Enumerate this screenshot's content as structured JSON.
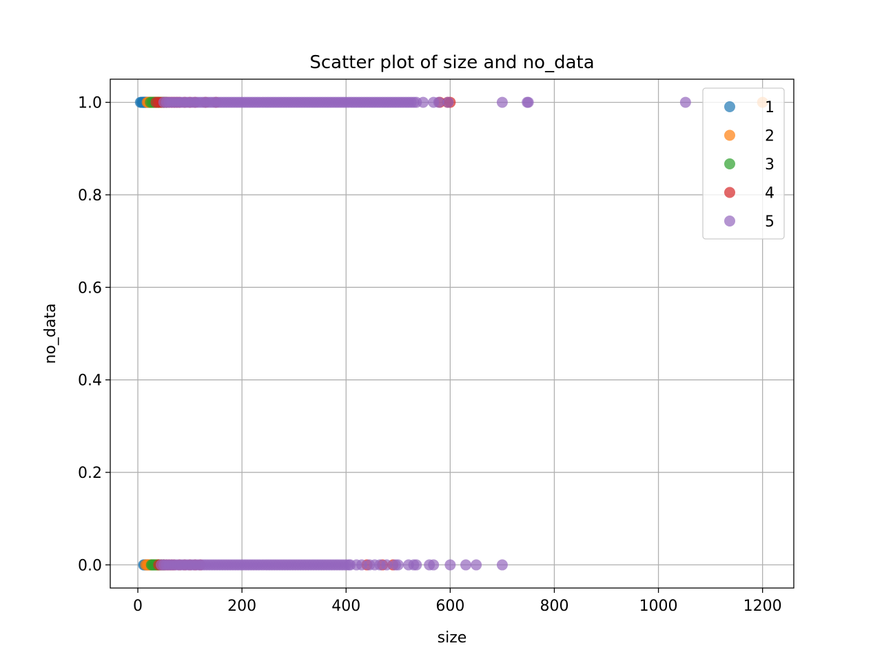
{
  "chart_data": {
    "type": "scatter",
    "title": "Scatter plot of size and no_data",
    "xlabel": "size",
    "ylabel": "no_data",
    "xlim": [
      -53,
      1260
    ],
    "ylim": [
      -0.05,
      1.05
    ],
    "xticks": [
      0,
      200,
      400,
      600,
      800,
      1000,
      1200
    ],
    "yticks": [
      0.0,
      0.2,
      0.4,
      0.6,
      0.8,
      1.0
    ],
    "xtick_labels": [
      "0",
      "200",
      "400",
      "600",
      "800",
      "1000",
      "1200"
    ],
    "ytick_labels": [
      "0.0",
      "0.2",
      "0.4",
      "0.6",
      "0.8",
      "1.0"
    ],
    "grid": true,
    "legend_position": "top-right",
    "marker_alpha": 0.7,
    "series": [
      {
        "name": "1",
        "color": "#1f77b4",
        "points_y1": [
          5,
          7,
          9,
          10,
          11,
          12,
          13,
          14,
          15,
          16,
          18,
          20,
          22
        ],
        "points_y0": [
          11,
          13,
          15,
          16,
          18,
          20
        ]
      },
      {
        "name": "2",
        "color": "#ff7f0e",
        "points_y1": [
          18,
          20,
          22,
          24,
          25,
          26,
          28,
          30,
          32,
          34,
          36,
          38,
          40,
          1200
        ],
        "points_y0": [
          15,
          18,
          20,
          22,
          24,
          25,
          26,
          28,
          30,
          32,
          34,
          36,
          38,
          40
        ]
      },
      {
        "name": "3",
        "color": "#2ca02c",
        "points_y1": [
          24,
          27,
          30,
          32,
          35,
          38,
          40,
          42,
          45,
          48,
          50,
          52,
          55
        ],
        "points_y0": [
          26,
          28,
          30,
          32,
          35,
          38,
          40,
          42,
          45,
          48,
          50
        ]
      },
      {
        "name": "4",
        "color": "#d62728",
        "points_y1": [
          35,
          40,
          45,
          50,
          55,
          60,
          65,
          70,
          75,
          80,
          90,
          100,
          110,
          130,
          150,
          580,
          595,
          600
        ],
        "points_y0": [
          40,
          45,
          50,
          55,
          60,
          65,
          70,
          80,
          90,
          100,
          110,
          120,
          440,
          470,
          490
        ]
      },
      {
        "name": "5",
        "color": "#9467bd",
        "points_y1": [
          50,
          55,
          60,
          65,
          70,
          75,
          80,
          85,
          90,
          95,
          100,
          105,
          110,
          115,
          120,
          125,
          130,
          135,
          140,
          145,
          150,
          155,
          160,
          165,
          170,
          175,
          180,
          185,
          190,
          195,
          200,
          205,
          210,
          215,
          220,
          225,
          230,
          235,
          240,
          245,
          250,
          255,
          260,
          265,
          270,
          275,
          280,
          285,
          290,
          295,
          300,
          305,
          310,
          315,
          320,
          325,
          330,
          335,
          340,
          345,
          350,
          355,
          360,
          365,
          370,
          375,
          380,
          385,
          390,
          395,
          400,
          405,
          410,
          415,
          420,
          425,
          430,
          435,
          440,
          445,
          450,
          455,
          460,
          465,
          470,
          475,
          480,
          485,
          490,
          495,
          500,
          505,
          510,
          515,
          520,
          525,
          530,
          535,
          548,
          568,
          578,
          596,
          700,
          748,
          750,
          1052
        ],
        "points_y0": [
          45,
          50,
          55,
          60,
          65,
          70,
          75,
          80,
          85,
          90,
          95,
          100,
          105,
          110,
          115,
          120,
          125,
          130,
          135,
          140,
          145,
          150,
          155,
          160,
          165,
          170,
          175,
          180,
          185,
          190,
          195,
          200,
          205,
          210,
          215,
          220,
          225,
          230,
          235,
          240,
          245,
          250,
          255,
          260,
          265,
          270,
          275,
          280,
          285,
          290,
          295,
          300,
          305,
          310,
          315,
          320,
          325,
          330,
          335,
          340,
          345,
          350,
          355,
          360,
          365,
          370,
          375,
          380,
          385,
          390,
          395,
          400,
          405,
          408,
          420,
          430,
          445,
          455,
          465,
          478,
          495,
          500,
          520,
          530,
          535,
          560,
          568,
          600,
          630,
          650,
          700
        ]
      }
    ]
  }
}
